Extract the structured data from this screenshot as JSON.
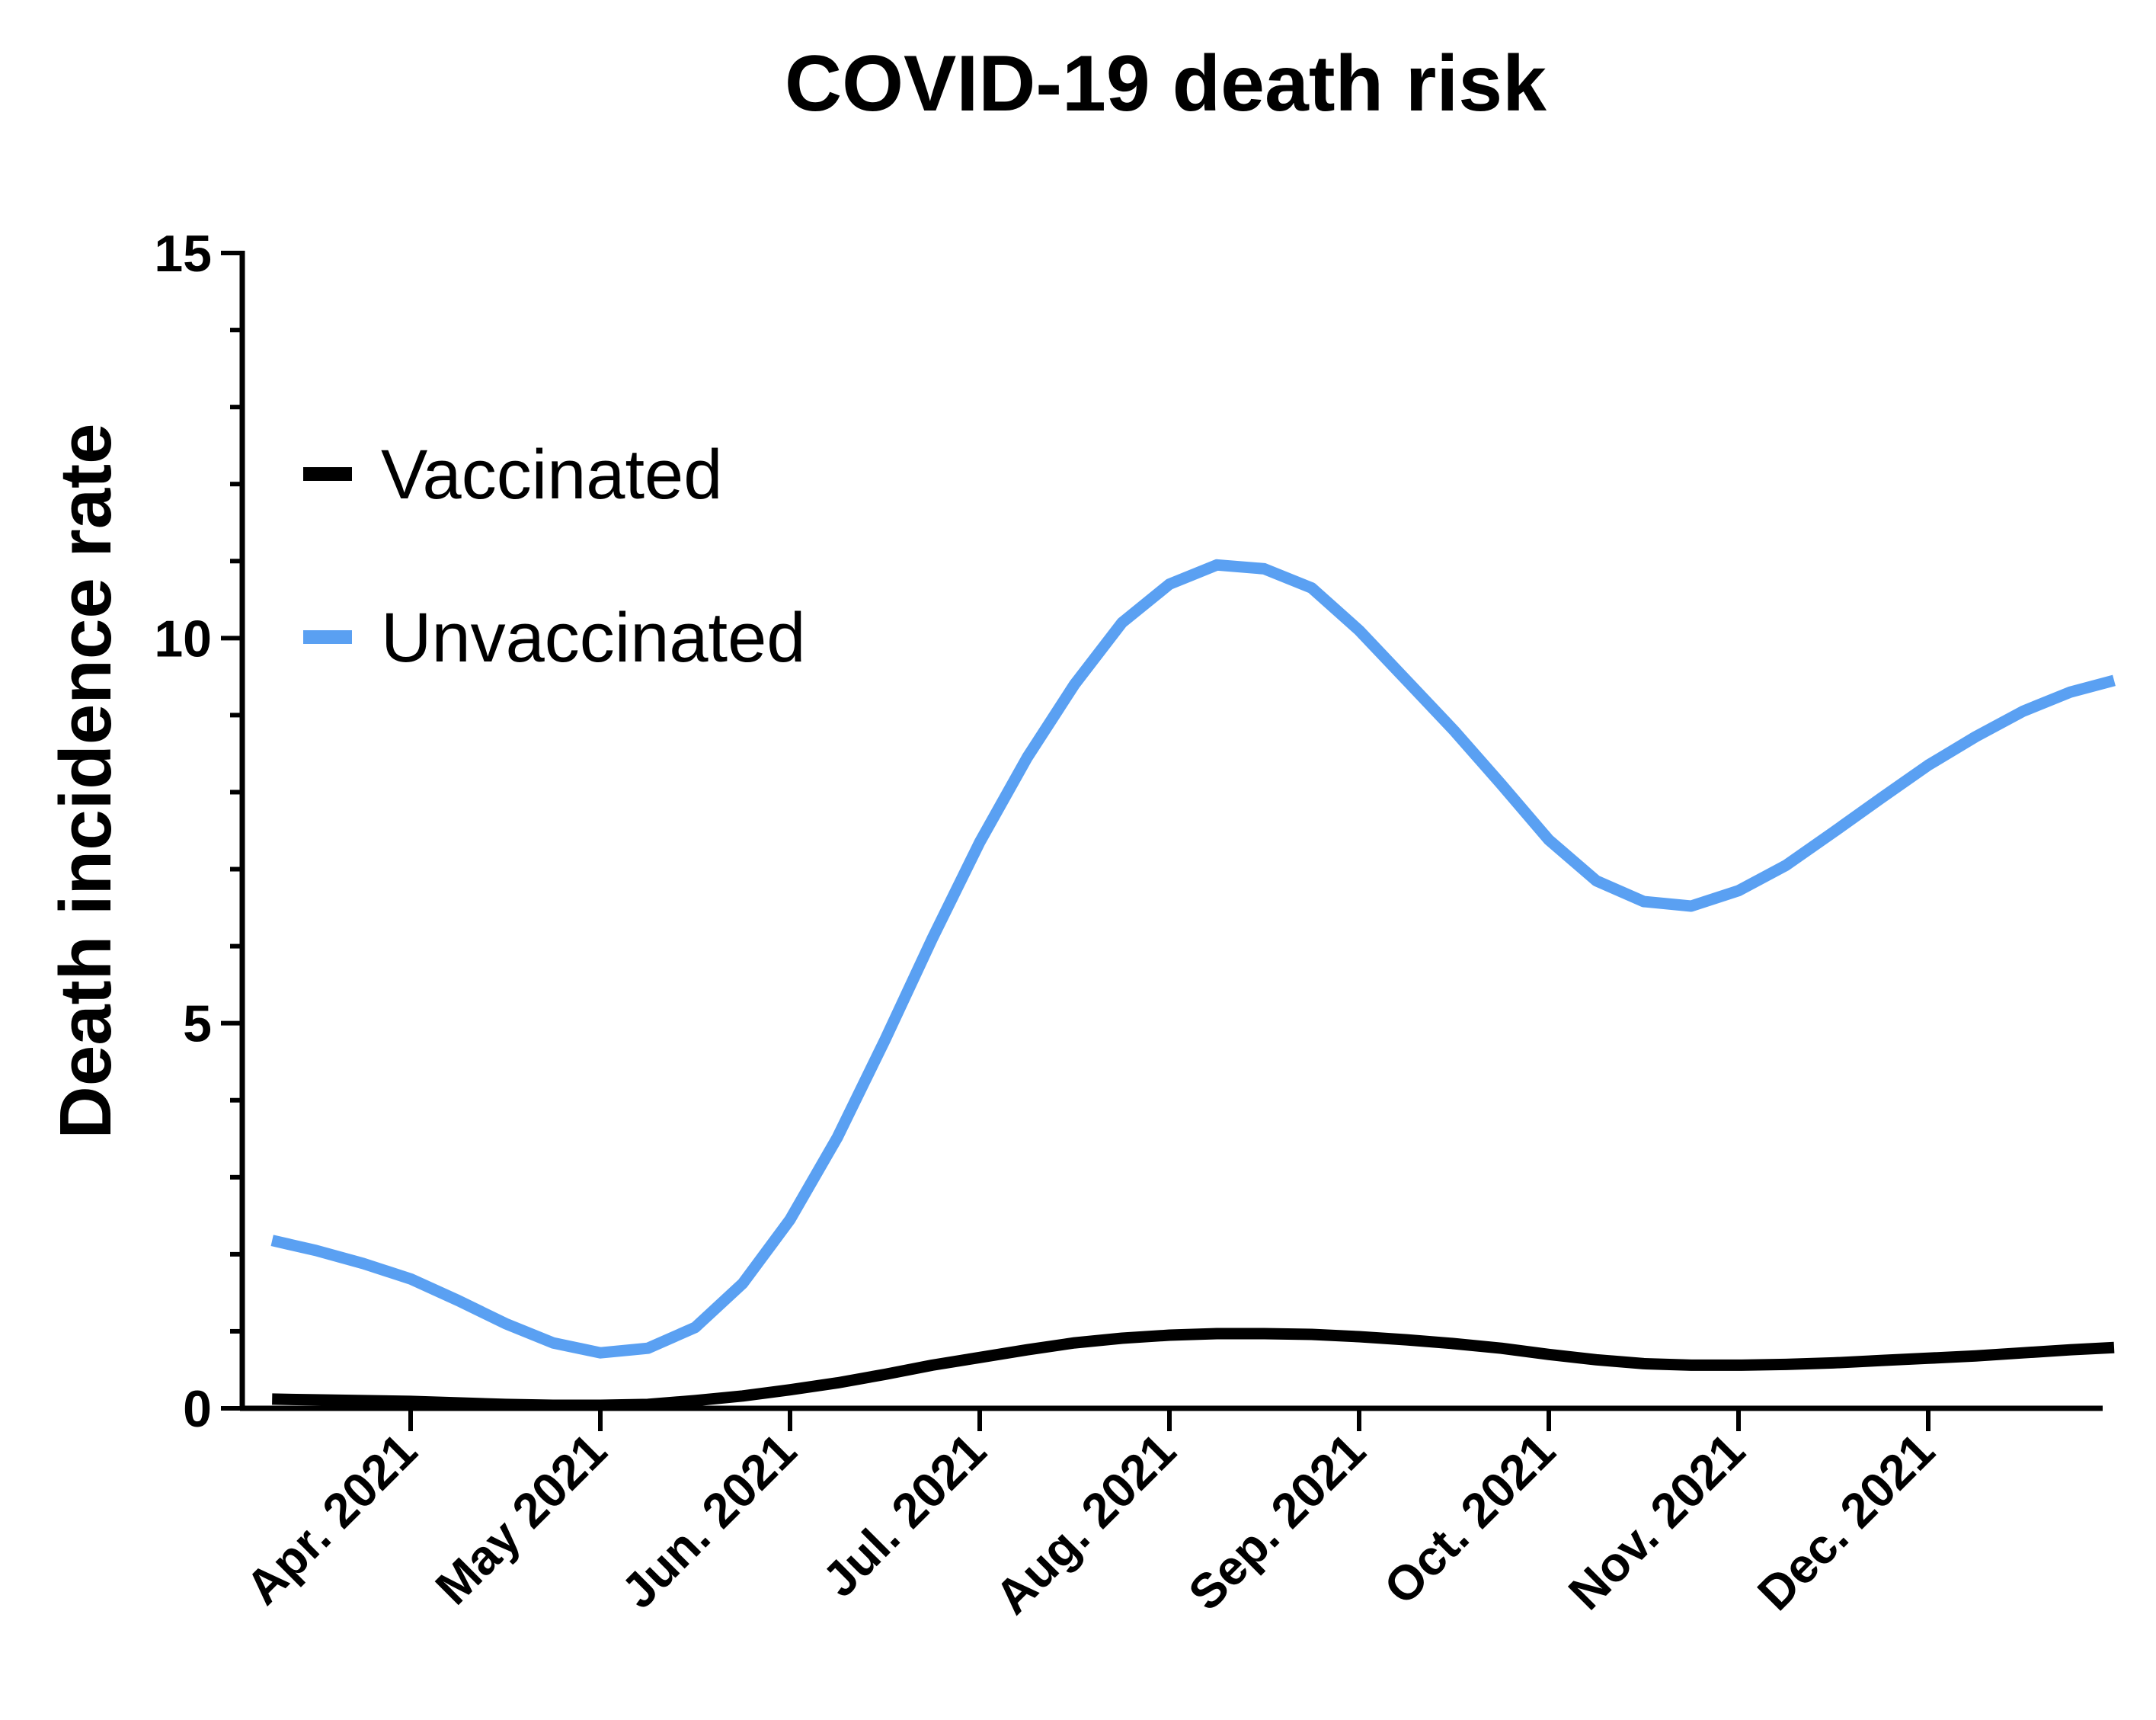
{
  "chart_data": {
    "type": "line",
    "title": "COVID-19 death risk",
    "xlabel": "",
    "ylabel": "Death incidence rate",
    "ylim": [
      0,
      15
    ],
    "yticks": [
      "0",
      "5",
      "10",
      "15"
    ],
    "categories": [
      "Apr. 2021",
      "May 2021",
      "Jun. 2021",
      "Jul. 2021",
      "Aug. 2021",
      "Sep. 2021",
      "Oct. 2021",
      "Nov. 2021",
      "Dec. 2021"
    ],
    "x": [
      -0.73,
      -0.5,
      -0.25,
      0,
      0.25,
      0.5,
      0.75,
      1,
      1.25,
      1.5,
      1.75,
      2,
      2.25,
      2.5,
      2.75,
      3,
      3.25,
      3.5,
      3.75,
      4,
      4.25,
      4.5,
      4.75,
      5,
      5.25,
      5.5,
      5.75,
      6,
      6.25,
      6.5,
      6.75,
      7,
      7.25,
      7.5,
      7.75,
      8,
      8.25,
      8.5,
      8.75,
      8.98
    ],
    "series": [
      {
        "name": "Vaccinated",
        "color": "#000000",
        "values": [
          0.12,
          0.11,
          0.1,
          0.09,
          0.07,
          0.05,
          0.04,
          0.04,
          0.05,
          0.1,
          0.16,
          0.24,
          0.33,
          0.44,
          0.56,
          0.66,
          0.76,
          0.85,
          0.91,
          0.95,
          0.97,
          0.97,
          0.96,
          0.93,
          0.89,
          0.84,
          0.78,
          0.7,
          0.63,
          0.58,
          0.56,
          0.56,
          0.57,
          0.59,
          0.62,
          0.65,
          0.68,
          0.72,
          0.76,
          0.79
        ]
      },
      {
        "name": "Unvaccinated",
        "color": "#5aa0f2",
        "values": [
          2.18,
          2.05,
          1.88,
          1.68,
          1.4,
          1.1,
          0.85,
          0.72,
          0.78,
          1.05,
          1.62,
          2.45,
          3.52,
          4.78,
          6.1,
          7.35,
          8.45,
          9.4,
          10.2,
          10.7,
          10.95,
          10.9,
          10.65,
          10.1,
          9.45,
          8.8,
          8.1,
          7.38,
          6.85,
          6.58,
          6.52,
          6.72,
          7.05,
          7.48,
          7.92,
          8.35,
          8.72,
          9.05,
          9.3,
          9.45
        ]
      }
    ],
    "legend_position": "top-left",
    "grid": false
  }
}
